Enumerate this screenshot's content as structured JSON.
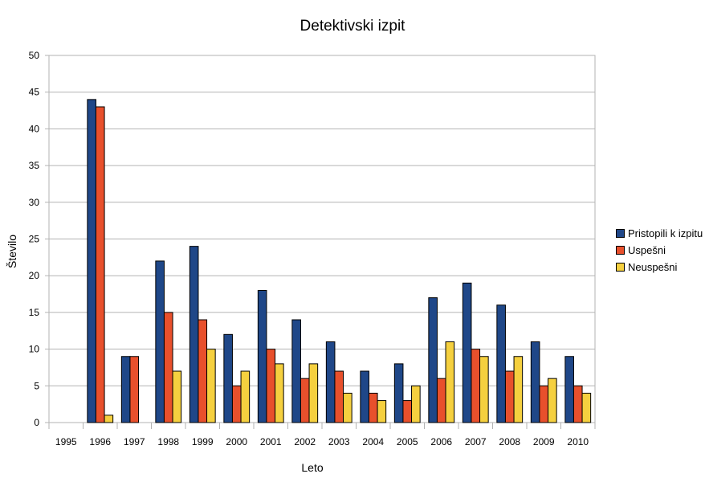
{
  "chart_data": {
    "type": "bar",
    "title": "Detektivski izpit",
    "xlabel": "Leto",
    "ylabel": "Število",
    "ylim": [
      0,
      50
    ],
    "yticks": [
      0,
      5,
      10,
      15,
      20,
      25,
      30,
      35,
      40,
      45,
      50
    ],
    "grid": true,
    "legend_position": "right",
    "categories": [
      "1995",
      "1996",
      "1997",
      "1998",
      "1999",
      "2000",
      "2001",
      "2002",
      "2003",
      "2004",
      "2005",
      "2006",
      "2007",
      "2008",
      "2009",
      "2010"
    ],
    "series": [
      {
        "name": "Pristopili k izpitu",
        "color": "#1f4788",
        "values": [
          0,
          44,
          9,
          22,
          24,
          12,
          18,
          14,
          11,
          7,
          8,
          17,
          19,
          16,
          11,
          9
        ]
      },
      {
        "name": "Uspešni",
        "color": "#e8502c",
        "values": [
          0,
          43,
          9,
          15,
          14,
          5,
          10,
          6,
          7,
          4,
          3,
          6,
          10,
          7,
          5,
          5
        ]
      },
      {
        "name": "Neuspešni",
        "color": "#f5d03f",
        "values": [
          0,
          1,
          0,
          7,
          10,
          7,
          8,
          8,
          4,
          3,
          5,
          11,
          9,
          9,
          6,
          4
        ]
      }
    ]
  }
}
